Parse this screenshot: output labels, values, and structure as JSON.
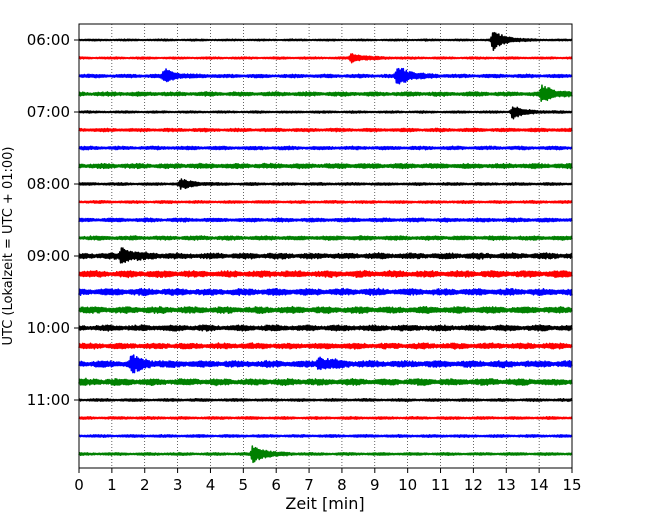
{
  "chart_data": {
    "type": "line",
    "title": "",
    "xlabel": "Zeit  [min]",
    "ylabel": "UTC (Lokalzeit = UTC + 01:00)",
    "xlim": [
      0,
      15
    ],
    "x_ticks": [
      "0",
      "1",
      "2",
      "3",
      "4",
      "5",
      "6",
      "7",
      "8",
      "9",
      "10",
      "11",
      "12",
      "13",
      "14",
      "15"
    ],
    "y_tick_labels": [
      "06:00",
      "07:00",
      "08:00",
      "09:00",
      "10:00",
      "11:00"
    ],
    "grid": "vertical dotted lines at each minute",
    "trace_colors": [
      "#000000",
      "#ff0000",
      "#0000ff",
      "#008000"
    ],
    "traces": [
      {
        "start": "06:00",
        "color": "#000000",
        "base": 0.1,
        "events": [
          {
            "t": 12.6,
            "amp": 1.1
          }
        ]
      },
      {
        "start": "06:15",
        "color": "#ff0000",
        "base": 0.12,
        "events": [
          {
            "t": 8.3,
            "amp": 0.55
          }
        ]
      },
      {
        "start": "06:30",
        "color": "#0000ff",
        "base": 0.2,
        "events": [
          {
            "t": 2.6,
            "amp": 0.7
          },
          {
            "t": 9.7,
            "amp": 1.1
          }
        ]
      },
      {
        "start": "06:45",
        "color": "#008000",
        "base": 0.25,
        "events": [
          {
            "t": 14.1,
            "amp": 0.9
          }
        ]
      },
      {
        "start": "07:00",
        "color": "#000000",
        "base": 0.12,
        "events": [
          {
            "t": 13.2,
            "amp": 0.7
          }
        ]
      },
      {
        "start": "07:15",
        "color": "#ff0000",
        "base": 0.2,
        "events": []
      },
      {
        "start": "07:30",
        "color": "#0000ff",
        "base": 0.2,
        "events": []
      },
      {
        "start": "07:45",
        "color": "#008000",
        "base": 0.3,
        "events": []
      },
      {
        "start": "08:00",
        "color": "#000000",
        "base": 0.15,
        "events": [
          {
            "t": 3.1,
            "amp": 0.5
          }
        ]
      },
      {
        "start": "08:15",
        "color": "#ff0000",
        "base": 0.15,
        "events": []
      },
      {
        "start": "08:30",
        "color": "#0000ff",
        "base": 0.22,
        "events": []
      },
      {
        "start": "08:45",
        "color": "#008000",
        "base": 0.25,
        "events": []
      },
      {
        "start": "09:00",
        "color": "#000000",
        "base": 0.35,
        "events": [
          {
            "t": 1.3,
            "amp": 0.8
          }
        ]
      },
      {
        "start": "09:15",
        "color": "#ff0000",
        "base": 0.4,
        "events": []
      },
      {
        "start": "09:30",
        "color": "#0000ff",
        "base": 0.4,
        "events": []
      },
      {
        "start": "09:45",
        "color": "#008000",
        "base": 0.4,
        "events": []
      },
      {
        "start": "10:00",
        "color": "#000000",
        "base": 0.35,
        "events": []
      },
      {
        "start": "10:15",
        "color": "#ff0000",
        "base": 0.35,
        "events": []
      },
      {
        "start": "10:30",
        "color": "#0000ff",
        "base": 0.4,
        "events": [
          {
            "t": 1.6,
            "amp": 0.8
          },
          {
            "t": 7.3,
            "amp": 0.7
          }
        ]
      },
      {
        "start": "10:45",
        "color": "#008000",
        "base": 0.4,
        "events": []
      },
      {
        "start": "11:00",
        "color": "#000000",
        "base": 0.15,
        "events": []
      },
      {
        "start": "11:15",
        "color": "#ff0000",
        "base": 0.15,
        "events": []
      },
      {
        "start": "11:30",
        "color": "#0000ff",
        "base": 0.15,
        "events": []
      },
      {
        "start": "11:45",
        "color": "#008000",
        "base": 0.15,
        "events": [
          {
            "t": 5.3,
            "amp": 1.0
          }
        ]
      }
    ]
  }
}
